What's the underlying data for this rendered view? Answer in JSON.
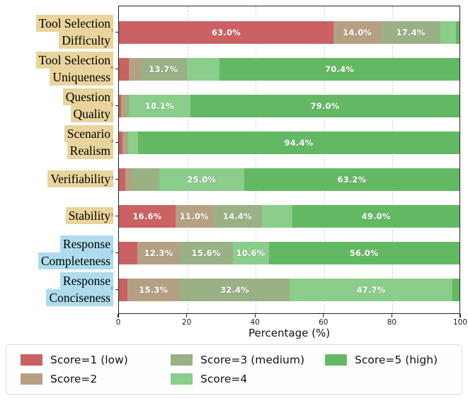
{
  "chart_data": {
    "type": "bar",
    "orientation": "horizontal",
    "stacked": true,
    "title": "",
    "xlabel": "Percentage (%)",
    "ylabel": "",
    "xlim": [
      0,
      100
    ],
    "xticks": [
      "0",
      "20",
      "40",
      "60",
      "80",
      "100"
    ],
    "xtick_values": [
      0,
      20,
      40,
      60,
      80,
      100
    ],
    "grid_x": [
      20,
      40,
      60,
      80
    ],
    "grid_style": "dashed",
    "legend_position": "below",
    "ytick_mini_labels": [
      "7",
      "6",
      "5",
      "4",
      "3",
      "2",
      "1",
      "0"
    ],
    "categories": [
      "Tool Selection Difficulty",
      "Tool Selection Uniqueness",
      "Question Quality",
      "Scenario Realism",
      "Verifiability",
      "Stability",
      "Response Completeness",
      "Response Conciseness"
    ],
    "category_lines": [
      [
        "Tool Selection",
        "Difficulty"
      ],
      [
        "Tool Selection",
        "Uniqueness"
      ],
      [
        "Question",
        "Quality"
      ],
      [
        "Scenario",
        "Realism"
      ],
      [
        "Verifiability"
      ],
      [
        "Stability"
      ],
      [
        "Response",
        "Completeness"
      ],
      [
        "Response",
        "Conciseness"
      ]
    ],
    "category_highlight": [
      "tan",
      "tan",
      "tan",
      "tan",
      "tan",
      "tan",
      "blue",
      "blue"
    ],
    "series": [
      {
        "name": "Score=1 (low)",
        "color_key": "score1",
        "values": [
          63.0,
          3.0,
          0.6,
          1.0,
          1.9,
          16.6,
          5.5,
          2.5
        ],
        "labels": [
          "63.0%",
          "",
          "",
          "",
          "",
          "16.6%",
          "",
          ""
        ]
      },
      {
        "name": "Score=2",
        "color_key": "score2",
        "values": [
          14.0,
          3.2,
          1.2,
          1.2,
          1.8,
          11.0,
          12.3,
          15.3
        ],
        "labels": [
          "14.0%",
          "",
          "",
          "",
          "",
          "11.0%",
          "12.3%",
          "15.3%"
        ]
      },
      {
        "name": "Score=3 (medium)",
        "color_key": "score3",
        "values": [
          17.4,
          13.7,
          1.1,
          0.5,
          8.1,
          14.4,
          15.6,
          32.4
        ],
        "labels": [
          "17.4%",
          "13.7%",
          "",
          "",
          "",
          "14.4%",
          "15.6%",
          "32.4%"
        ]
      },
      {
        "name": "Score=4",
        "color_key": "score4",
        "values": [
          4.6,
          9.7,
          18.1,
          2.9,
          25.0,
          9.0,
          10.6,
          47.7
        ],
        "labels": [
          "",
          "",
          "18.1%",
          "",
          "25.0%",
          "",
          "10.6%",
          "47.7%"
        ]
      },
      {
        "name": "Score=5 (high)",
        "color_key": "score5",
        "values": [
          1.0,
          70.4,
          79.0,
          94.4,
          63.2,
          49.0,
          56.0,
          2.1
        ],
        "labels": [
          "",
          "70.4%",
          "79.0%",
          "94.4%",
          "63.2%",
          "49.0%",
          "56.0%",
          ""
        ]
      }
    ],
    "legend_entries": [
      "Score=1 (low)",
      "Score=2",
      "Score=3 (medium)",
      "Score=4",
      "Score=5 (high)"
    ]
  },
  "colors": {
    "score1": "#cb6162",
    "score2": "#b5a084",
    "score3": "#99b185",
    "score4": "#8bcd8b",
    "score5": "#63b963",
    "highlight_tan": "#e8d49c",
    "highlight_blue": "#aedcee",
    "grid": "#d4d4d4",
    "spine": "#222222"
  }
}
